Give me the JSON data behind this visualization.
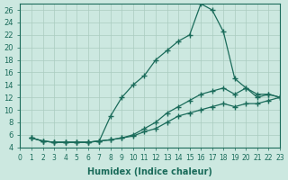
{
  "xlabel": "Humidex (Indice chaleur)",
  "ylabel": "",
  "bg_color": "#cce8e0",
  "line_color": "#1a6b5a",
  "grid_color": "#aaccc0",
  "xlim": [
    0,
    23
  ],
  "ylim": [
    4,
    27
  ],
  "xticks": [
    0,
    1,
    2,
    3,
    4,
    5,
    6,
    7,
    8,
    9,
    10,
    11,
    12,
    13,
    14,
    15,
    16,
    17,
    18,
    19,
    20,
    21,
    22,
    23
  ],
  "yticks": [
    4,
    6,
    8,
    10,
    12,
    14,
    16,
    18,
    20,
    22,
    24,
    26
  ],
  "series": [
    [
      5.5,
      5.0,
      4.8,
      4.8,
      4.8,
      4.8,
      5.0,
      9.0,
      12.0,
      14.0,
      15.5,
      18.0,
      19.5,
      21.0,
      22.0,
      27.0,
      26.0,
      22.5,
      15.0,
      13.5,
      12.0,
      12.5,
      12.0
    ],
    [
      5.5,
      5.0,
      4.8,
      4.8,
      4.8,
      4.8,
      5.0,
      5.2,
      5.5,
      6.0,
      7.0,
      8.0,
      9.5,
      10.5,
      11.5,
      12.5,
      13.0,
      13.5,
      12.5,
      13.5,
      12.5,
      12.5,
      12.0
    ],
    [
      5.5,
      5.0,
      4.8,
      4.8,
      4.8,
      4.8,
      5.0,
      5.2,
      5.5,
      5.8,
      6.5,
      7.0,
      8.0,
      9.0,
      9.5,
      10.0,
      10.5,
      11.0,
      10.5,
      11.0,
      11.0,
      11.5,
      12.0
    ]
  ]
}
